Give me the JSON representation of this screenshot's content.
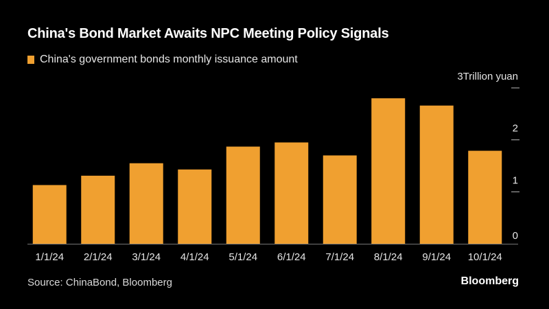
{
  "header": {
    "title": "China's Bond Market Awaits NPC Meeting Policy Signals"
  },
  "legend": {
    "label": "China's government bonds monthly issuance amount",
    "color": "#f0a030"
  },
  "footer": {
    "source": "Source: ChinaBond, Bloomberg",
    "brand": "Bloomberg"
  },
  "chart_data": {
    "type": "bar",
    "title": "China's Bond Market Awaits NPC Meeting Policy Signals",
    "ylabel": "Trillion yuan",
    "xlabel": "",
    "ylim": [
      0,
      3
    ],
    "yticks": [
      0,
      1,
      2,
      3
    ],
    "ytick_labels": [
      "0",
      "1",
      "2",
      "3"
    ],
    "axis_side": "right",
    "categories": [
      "1/1/24",
      "2/1/24",
      "3/1/24",
      "4/1/24",
      "5/1/24",
      "6/1/24",
      "7/1/24",
      "8/1/24",
      "9/1/24",
      "10/1/24"
    ],
    "series": [
      {
        "name": "China's government bonds monthly issuance amount",
        "color": "#f0a030",
        "values": [
          1.13,
          1.31,
          1.55,
          1.43,
          1.87,
          1.95,
          1.7,
          2.8,
          2.66,
          1.79
        ]
      }
    ]
  }
}
